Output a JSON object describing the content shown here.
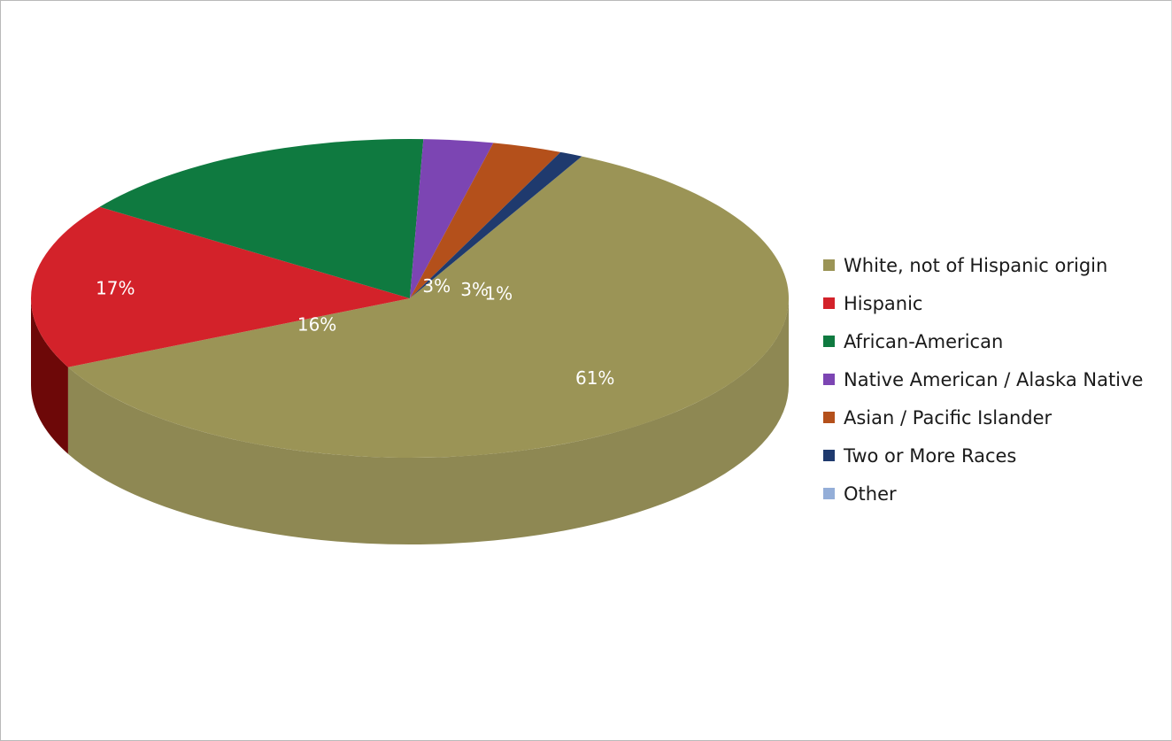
{
  "chart_data": {
    "type": "pie",
    "style": "3d",
    "categories": [
      "White, not of Hispanic origin",
      "Hispanic",
      "African-American",
      "Native American / Alaska Native",
      "Asian / Pacific Islander",
      "Two or More Races",
      "Other"
    ],
    "values": [
      61,
      17,
      16,
      3,
      3,
      1,
      0
    ],
    "data_labels": [
      "61%",
      "17%",
      "16%",
      "3%",
      "3%",
      "1%",
      ""
    ],
    "colors": [
      "#9b9456",
      "#d3222a",
      "#0f7a40",
      "#7c45b3",
      "#b4501b",
      "#1f3a6e",
      "#94aed8"
    ],
    "side_colors": [
      "#8e8853",
      "#6d0808",
      "#0a2d15",
      "#6a39a2",
      "#7a3517",
      "#14284f",
      "#7d95bb"
    ],
    "start_angle_deg": 297,
    "legend_position": "right",
    "title": ""
  }
}
